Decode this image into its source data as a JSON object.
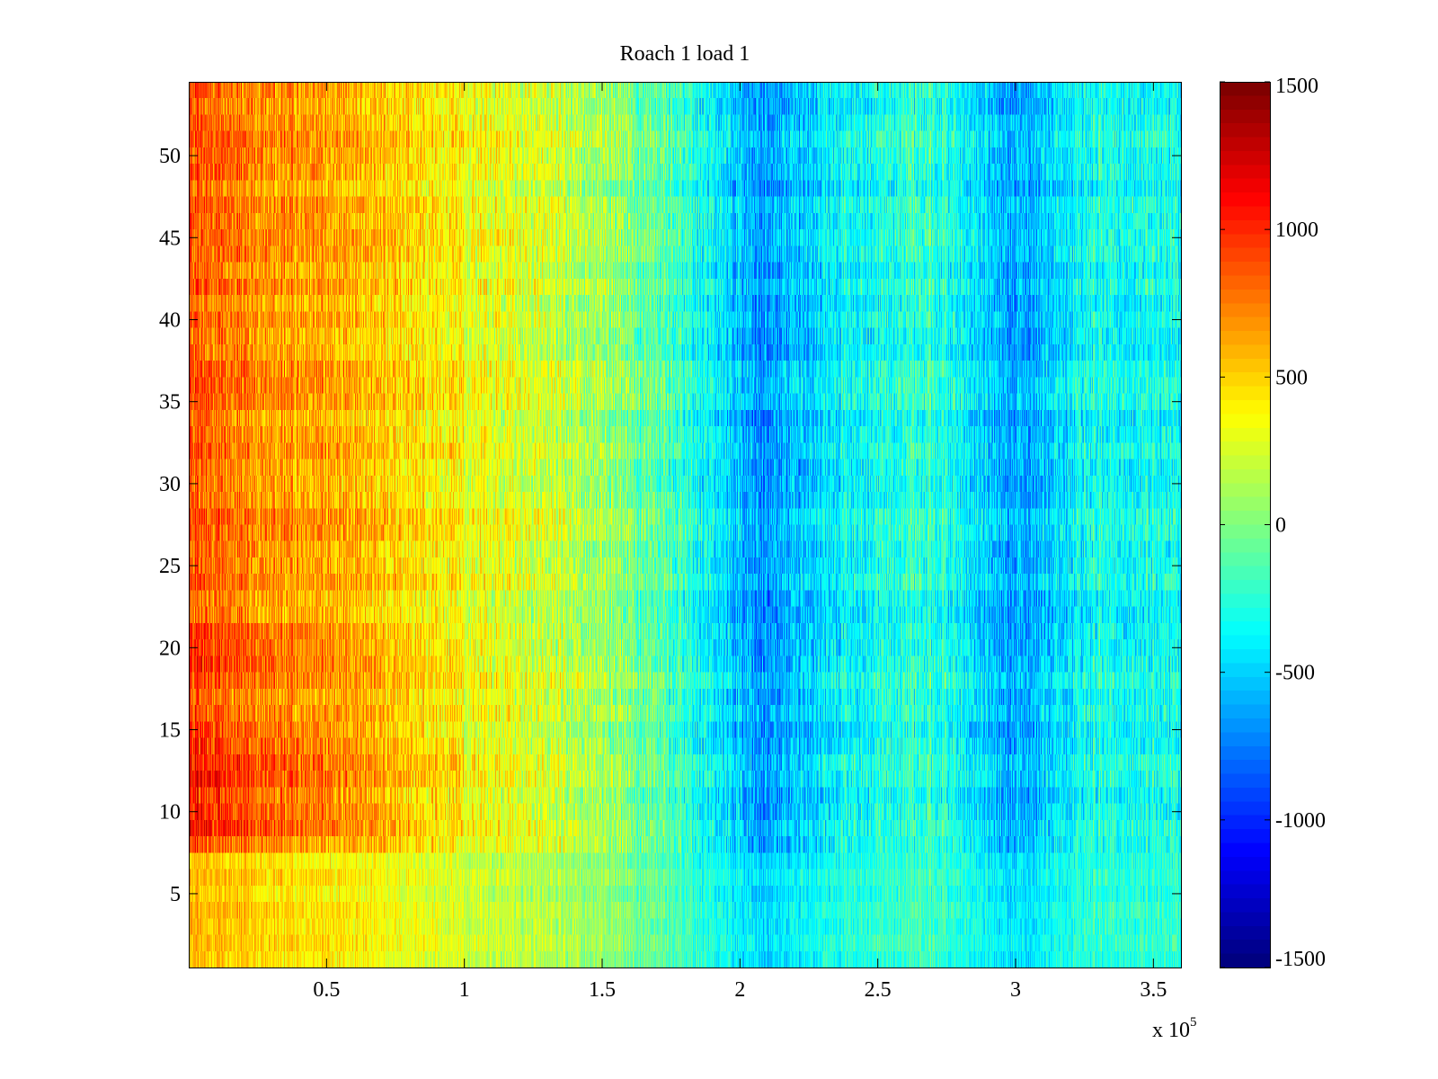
{
  "figure": {
    "title": "Roach 1 load 1",
    "x_exponent_prefix": "x 10",
    "x_exponent_power": "5"
  },
  "chart_data": {
    "type": "heatmap",
    "title": "Roach 1 load 1",
    "xlabel": "",
    "ylabel": "",
    "x_range": [
      0,
      360000
    ],
    "y_range": [
      0.5,
      54.5
    ],
    "rows": 54,
    "x_ticks": [
      50000,
      100000,
      150000,
      200000,
      250000,
      300000,
      350000
    ],
    "x_tick_labels": [
      "0.5",
      "1",
      "1.5",
      "2",
      "2.5",
      "3",
      "3.5"
    ],
    "x_multiplier_label": "x 10^5",
    "y_ticks": [
      5,
      10,
      15,
      20,
      25,
      30,
      35,
      40,
      45,
      50
    ],
    "y_tick_labels": [
      "5",
      "10",
      "15",
      "20",
      "25",
      "30",
      "35",
      "40",
      "45",
      "50"
    ],
    "colormap": "jet",
    "clim": [
      -1500,
      1500
    ],
    "colorbar": {
      "ticks": [
        1500,
        1000,
        500,
        0,
        -500,
        -1000,
        -1500
      ],
      "tick_labels": [
        "1500",
        "1000",
        "500",
        "0",
        "-500",
        "-1000",
        "-1500"
      ],
      "position": "right"
    },
    "grid": false,
    "trend_profile": {
      "description_x": [
        0,
        30000,
        60000,
        100000,
        150000,
        180000,
        210000,
        240000,
        270000,
        300000,
        330000,
        360000
      ],
      "mean_value": [
        850,
        700,
        600,
        350,
        100,
        -250,
        -700,
        -350,
        -250,
        -650,
        -300,
        -350
      ]
    }
  }
}
